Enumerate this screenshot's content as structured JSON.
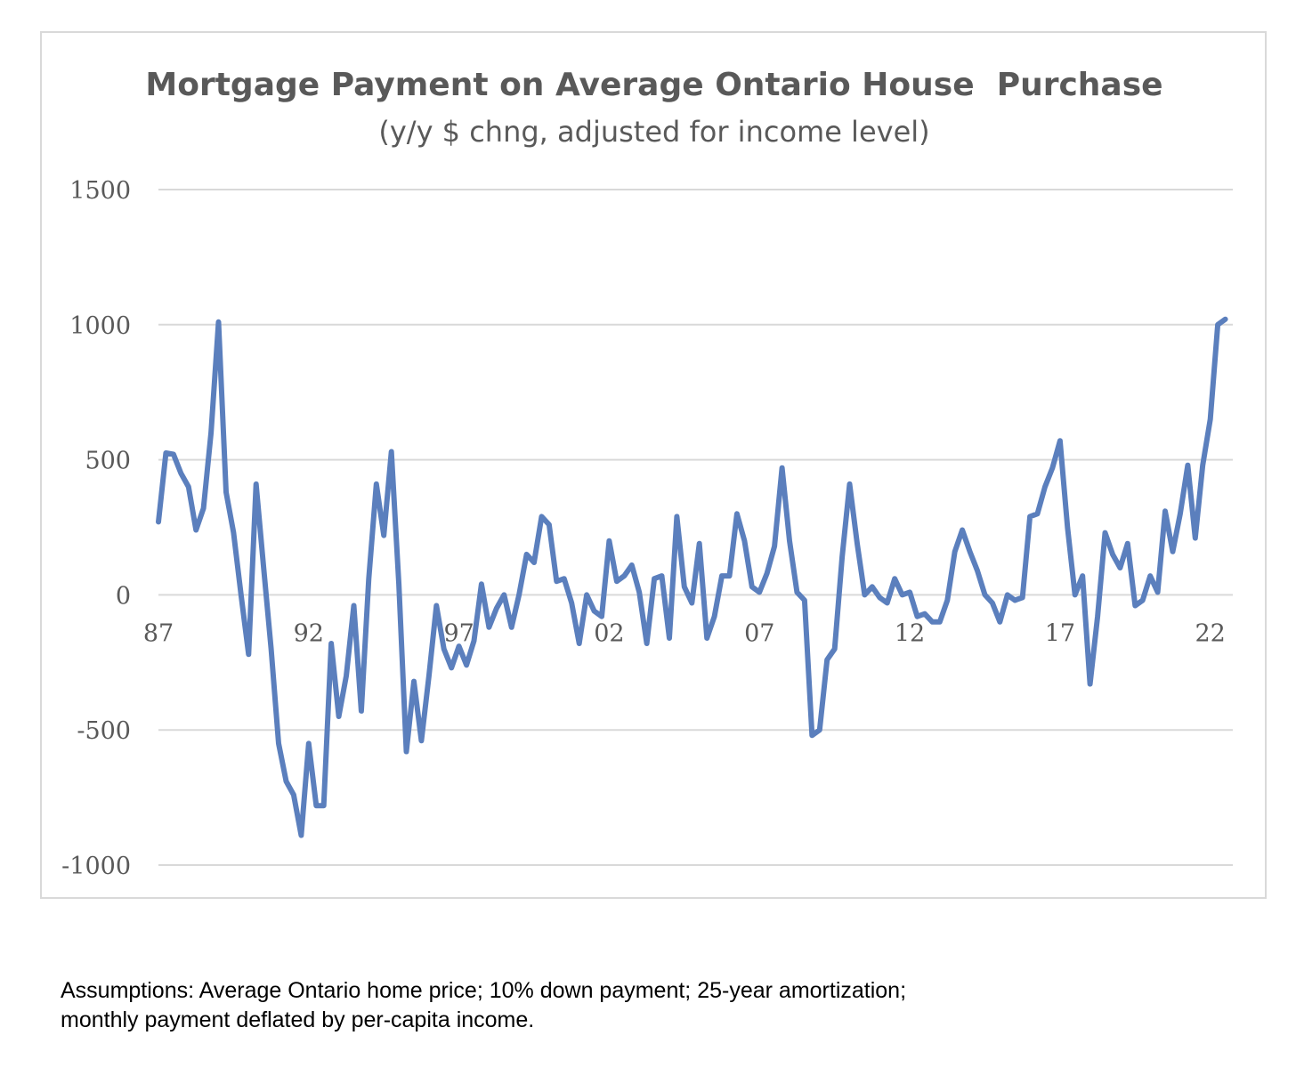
{
  "chart_data": {
    "type": "line",
    "title": "Mortgage Payment on Average Ontario House  Purchase",
    "subtitle": "(y/y $ chng, adjusted for income level)",
    "xlabel": "",
    "ylabel": "",
    "ylim": [
      -1000,
      1500
    ],
    "yticks": [
      1500,
      1000,
      500,
      0,
      -500,
      -1000
    ],
    "ytick_labels": [
      "1500",
      "1000",
      "500",
      "0",
      "-500",
      "-1000"
    ],
    "xlim": [
      1987.0,
      2022.75
    ],
    "xticks": [
      1987,
      1992,
      1997,
      2002,
      2007,
      2012,
      2017,
      2022
    ],
    "xtick_labels": [
      "87",
      "92",
      "97",
      "02",
      "07",
      "12",
      "17",
      "22"
    ],
    "grid": true,
    "legend": "none",
    "series_color": "#5b7fbd",
    "series": [
      {
        "x": [
          1987.0,
          1987.25,
          1987.5,
          1987.75,
          1988.0,
          1988.25,
          1988.5,
          1988.75,
          1989.0,
          1989.25,
          1989.5,
          1989.75,
          1990.0,
          1990.25,
          1990.5,
          1990.75,
          1991.0,
          1991.25,
          1991.5,
          1991.75,
          1992.0,
          1992.25,
          1992.5,
          1992.75,
          1993.0,
          1993.25,
          1993.5,
          1993.75,
          1994.0,
          1994.25,
          1994.5,
          1994.75,
          1995.0,
          1995.25,
          1995.5,
          1995.75,
          1996.0,
          1996.25,
          1996.5,
          1996.75,
          1997.0,
          1997.25,
          1997.5,
          1997.75,
          1998.0,
          1998.25,
          1998.5,
          1998.75,
          1999.0,
          1999.25,
          1999.5,
          1999.75,
          2000.0,
          2000.25,
          2000.5,
          2000.75,
          2001.0,
          2001.25,
          2001.5,
          2001.75,
          2002.0,
          2002.25,
          2002.5,
          2002.75,
          2003.0,
          2003.25,
          2003.5,
          2003.75,
          2004.0,
          2004.25,
          2004.5,
          2004.75,
          2005.0,
          2005.25,
          2005.5,
          2005.75,
          2006.0,
          2006.25,
          2006.5,
          2006.75,
          2007.0,
          2007.25,
          2007.5,
          2007.75,
          2008.0,
          2008.25,
          2008.5,
          2008.75,
          2009.0,
          2009.25,
          2009.5,
          2009.75,
          2010.0,
          2010.25,
          2010.5,
          2010.75,
          2011.0,
          2011.25,
          2011.5,
          2011.75,
          2012.0,
          2012.25,
          2012.5,
          2012.75,
          2013.0,
          2013.25,
          2013.5,
          2013.75,
          2014.0,
          2014.25,
          2014.5,
          2014.75,
          2015.0,
          2015.25,
          2015.5,
          2015.75,
          2016.0,
          2016.25,
          2016.5,
          2016.75,
          2017.0,
          2017.25,
          2017.5,
          2017.75,
          2018.0,
          2018.25,
          2018.5,
          2018.75,
          2019.0,
          2019.25,
          2019.5,
          2019.75,
          2020.0,
          2020.25,
          2020.5,
          2020.75,
          2021.0,
          2021.25,
          2021.5,
          2021.75,
          2022.0,
          2022.25,
          2022.5
        ],
        "y": [
          270,
          525,
          520,
          450,
          400,
          240,
          320,
          600,
          1010,
          380,
          230,
          0,
          -220,
          410,
          100,
          -200,
          -550,
          -690,
          -740,
          -890,
          -550,
          -780,
          -780,
          -180,
          -450,
          -300,
          -40,
          -430,
          60,
          410,
          220,
          530,
          40,
          -580,
          -320,
          -540,
          -300,
          -40,
          -200,
          -270,
          -190,
          -260,
          -170,
          40,
          -120,
          -50,
          0,
          -120,
          0,
          150,
          120,
          290,
          260,
          50,
          60,
          -30,
          -180,
          0,
          -60,
          -80,
          200,
          50,
          70,
          110,
          10,
          -180,
          60,
          70,
          -160,
          290,
          30,
          -30,
          190,
          -160,
          -80,
          70,
          70,
          300,
          200,
          30,
          10,
          80,
          180,
          470,
          200,
          10,
          -20,
          -520,
          -500,
          -240,
          -200,
          140,
          410,
          190,
          0,
          30,
          -10,
          -30,
          60,
          0,
          10,
          -80,
          -70,
          -100,
          -100,
          -20,
          160,
          240,
          160,
          90,
          0,
          -30,
          -100,
          0,
          -20,
          -10,
          290,
          300,
          400,
          470,
          570,
          250,
          0,
          70,
          -330,
          -80,
          230,
          150,
          100,
          190,
          -40,
          -20,
          70,
          10,
          310,
          160,
          300,
          480,
          210,
          480,
          650,
          1000,
          1020
        ]
      }
    ]
  },
  "footnote": {
    "line1": "Assumptions: Average Ontario home price; 10% down payment; 25-year amortization;",
    "line2": "monthly payment deflated by per-capita income."
  }
}
